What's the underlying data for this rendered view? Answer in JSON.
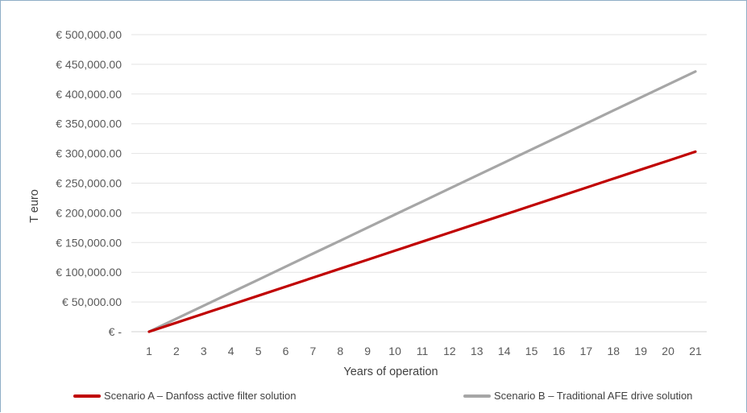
{
  "chart_data": {
    "type": "line",
    "title": "",
    "xlabel": "Years of operation",
    "ylabel": "T euro",
    "x": [
      1,
      2,
      3,
      4,
      5,
      6,
      7,
      8,
      9,
      10,
      11,
      12,
      13,
      14,
      15,
      16,
      17,
      18,
      19,
      20,
      21
    ],
    "xlim": [
      1,
      21
    ],
    "ylim": [
      0,
      500000
    ],
    "yticks": [
      0,
      50000,
      100000,
      150000,
      200000,
      250000,
      300000,
      350000,
      400000,
      450000,
      500000
    ],
    "ytick_labels": [
      "€ -",
      "€ 50,000.00",
      "€ 100,000.00",
      "€ 150,000.00",
      "€ 200,000.00",
      "€ 250,000.00",
      "€ 300,000.00",
      "€ 350,000.00",
      "€ 400,000.00",
      "€ 450,000.00",
      "€ 500,000.00"
    ],
    "grid": "horizontal",
    "legend_position": "bottom",
    "series": [
      {
        "name": "Scenario A – Danfoss active filter solution",
        "color": "#c00000",
        "values": [
          0,
          15150,
          30300,
          45450,
          60600,
          75750,
          90900,
          106050,
          121200,
          136350,
          151500,
          166650,
          181800,
          196950,
          212100,
          227250,
          242400,
          257550,
          272700,
          287850,
          303000
        ]
      },
      {
        "name": "Scenario B – Traditional AFE drive solution",
        "color": "#a6a6a6",
        "values": [
          0,
          21900,
          43800,
          65700,
          87600,
          109500,
          131400,
          153300,
          175200,
          197100,
          219000,
          240900,
          262800,
          284700,
          306600,
          328500,
          350400,
          372300,
          394200,
          416100,
          438000
        ]
      }
    ]
  }
}
